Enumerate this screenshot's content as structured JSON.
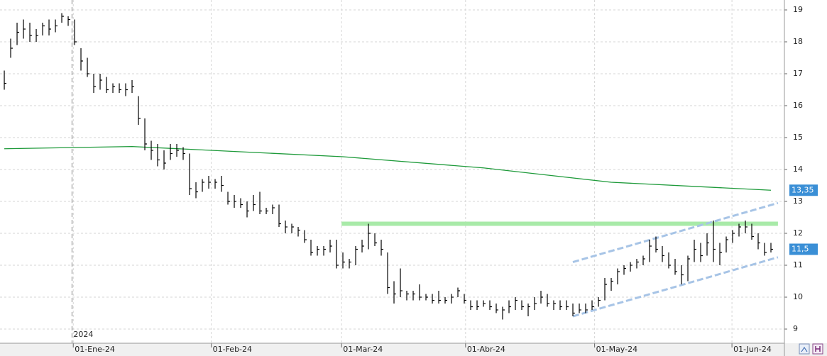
{
  "chart_data": {
    "type": "ohlc",
    "xlim": [
      -0.67,
      122.11
    ],
    "ylim": [
      8.556,
      19.311
    ],
    "yticks": [
      9,
      10,
      11,
      12,
      13,
      14,
      15,
      16,
      17,
      18,
      19
    ],
    "xticks": [
      {
        "value": 10.8,
        "label": "01-Ene-24"
      },
      {
        "value": 32.4,
        "label": "01-Feb-24"
      },
      {
        "value": 52.8,
        "label": "01-Mar-24"
      },
      {
        "value": 72.2,
        "label": "01-Abr-24"
      },
      {
        "value": 92.4,
        "label": "01-May-24"
      },
      {
        "value": 113.9,
        "label": "01-Jun-24"
      }
    ],
    "year_marker": {
      "value": 10.6,
      "label": "2024"
    },
    "grid": true,
    "bar_color": "#000000",
    "x": [
      0,
      1,
      2,
      3,
      4,
      5,
      6,
      7,
      8,
      9,
      10,
      11,
      12,
      13,
      14,
      15,
      16,
      17,
      18,
      19,
      20,
      21,
      22,
      23,
      24,
      25,
      26,
      27,
      28,
      29,
      30,
      31,
      32,
      33,
      34,
      35,
      36,
      37,
      38,
      39,
      40,
      41,
      42,
      43,
      44,
      45,
      46,
      47,
      48,
      49,
      50,
      51,
      52,
      53,
      54,
      55,
      56,
      57,
      58,
      59,
      60,
      61,
      62,
      63,
      64,
      65,
      66,
      67,
      68,
      69,
      70,
      71,
      72,
      73,
      74,
      75,
      76,
      77,
      78,
      79,
      80,
      81,
      82,
      83,
      84,
      85,
      86,
      87,
      88,
      89,
      90,
      91,
      92,
      93,
      94,
      95,
      96,
      97,
      98,
      99,
      100,
      101,
      102,
      103,
      104,
      105,
      106,
      107,
      108,
      109,
      110,
      111,
      112,
      113,
      114,
      115,
      116,
      117,
      118,
      119,
      120
    ],
    "high": [
      17.1,
      18.1,
      18.6,
      18.7,
      18.6,
      18.4,
      18.6,
      18.7,
      18.7,
      18.9,
      18.8,
      18.7,
      17.8,
      17.5,
      17.0,
      17.0,
      16.9,
      16.7,
      16.7,
      16.7,
      16.8,
      16.3,
      15.6,
      14.9,
      14.8,
      14.6,
      14.8,
      14.8,
      14.7,
      14.5,
      13.6,
      13.7,
      13.8,
      13.7,
      13.8,
      13.3,
      13.2,
      13.1,
      13.0,
      13.2,
      13.3,
      12.8,
      12.9,
      12.9,
      12.4,
      12.3,
      12.2,
      12.1,
      11.8,
      11.6,
      11.6,
      11.8,
      11.8,
      11.4,
      11.2,
      11.6,
      11.8,
      12.3,
      12.0,
      11.8,
      11.4,
      10.5,
      10.9,
      10.2,
      10.2,
      10.4,
      10.1,
      10.1,
      10.2,
      10.0,
      10.1,
      10.3,
      10.1,
      9.9,
      9.9,
      9.9,
      9.9,
      9.8,
      9.7,
      9.9,
      10.0,
      9.9,
      9.8,
      10.0,
      10.2,
      10.1,
      9.9,
      9.9,
      9.9,
      9.8,
      9.8,
      9.8,
      9.9,
      10.0,
      10.6,
      10.6,
      10.9,
      11.0,
      11.1,
      11.2,
      11.3,
      11.8,
      11.9,
      11.6,
      11.4,
      11.2,
      11.0,
      11.3,
      11.8,
      11.7,
      12.0,
      12.4,
      11.7,
      11.9,
      12.1,
      12.3,
      12.4,
      12.3,
      12.0,
      11.7,
      11.7
    ],
    "low": [
      16.5,
      17.5,
      17.9,
      18.1,
      18.0,
      18.0,
      18.2,
      18.2,
      18.3,
      18.6,
      18.5,
      17.9,
      17.1,
      16.9,
      16.4,
      16.5,
      16.4,
      16.4,
      16.4,
      16.3,
      16.4,
      15.4,
      14.6,
      14.3,
      14.1,
      14.0,
      14.3,
      14.4,
      14.3,
      13.2,
      13.1,
      13.3,
      13.4,
      13.4,
      13.3,
      12.9,
      12.8,
      12.8,
      12.5,
      12.7,
      12.6,
      12.6,
      12.6,
      12.2,
      12.0,
      12.0,
      11.9,
      11.7,
      11.3,
      11.3,
      11.3,
      11.4,
      10.9,
      10.9,
      10.9,
      11.0,
      11.4,
      11.5,
      11.6,
      11.3,
      10.1,
      9.8,
      10.0,
      9.9,
      9.9,
      9.9,
      9.9,
      9.8,
      9.8,
      9.8,
      9.8,
      10.0,
      9.8,
      9.6,
      9.6,
      9.7,
      9.6,
      9.5,
      9.3,
      9.5,
      9.6,
      9.6,
      9.4,
      9.6,
      9.8,
      9.7,
      9.6,
      9.6,
      9.6,
      9.4,
      9.5,
      9.5,
      9.6,
      9.7,
      9.9,
      10.2,
      10.4,
      10.7,
      10.8,
      10.9,
      11.0,
      11.1,
      11.4,
      11.1,
      10.9,
      10.7,
      10.4,
      10.5,
      11.1,
      11.1,
      11.3,
      11.1,
      11.0,
      11.4,
      11.7,
      11.9,
      12.0,
      11.8,
      11.5,
      11.3,
      11.4
    ],
    "close": [
      16.7,
      17.8,
      18.3,
      18.4,
      18.2,
      18.2,
      18.5,
      18.4,
      18.5,
      18.8,
      18.7,
      18.0,
      17.4,
      17.0,
      16.6,
      16.8,
      16.5,
      16.6,
      16.5,
      16.5,
      16.6,
      15.6,
      14.8,
      14.6,
      14.3,
      14.2,
      14.5,
      14.6,
      14.5,
      13.4,
      13.3,
      13.6,
      13.6,
      13.6,
      13.5,
      13.0,
      13.0,
      12.9,
      12.7,
      12.9,
      12.7,
      12.7,
      12.8,
      12.3,
      12.2,
      12.2,
      12.1,
      11.8,
      11.4,
      11.5,
      11.5,
      11.6,
      11.0,
      11.1,
      11.1,
      11.5,
      11.6,
      12.0,
      11.7,
      11.5,
      10.3,
      10.1,
      10.2,
      10.1,
      10.1,
      10.0,
      10.0,
      9.9,
      9.9,
      9.9,
      10.0,
      10.2,
      9.9,
      9.7,
      9.7,
      9.8,
      9.7,
      9.6,
      9.6,
      9.7,
      9.9,
      9.7,
      9.7,
      9.8,
      10.0,
      9.8,
      9.8,
      9.7,
      9.7,
      9.5,
      9.6,
      9.6,
      9.7,
      9.9,
      10.4,
      10.5,
      10.8,
      10.9,
      11.0,
      11.1,
      11.2,
      11.6,
      11.5,
      11.3,
      11.0,
      10.8,
      10.7,
      11.2,
      11.5,
      11.3,
      11.7,
      11.5,
      11.4,
      11.8,
      12.0,
      12.2,
      12.2,
      11.9,
      11.7,
      11.4,
      11.5
    ],
    "last_price": {
      "value": 11.5,
      "label": "11,5",
      "color": "#3a8fd6"
    },
    "moving_average": {
      "color": "#1e9a3a",
      "x": [
        0,
        20,
        53,
        75,
        95,
        120
      ],
      "values": [
        14.65,
        14.72,
        14.4,
        14.05,
        13.6,
        13.35
      ],
      "last": {
        "value": 13.35,
        "label": "13,35"
      }
    },
    "resistance": {
      "color": "#a8eaa8",
      "x": [
        52.8,
        121.1
      ],
      "values": [
        12.3,
        12.3
      ]
    },
    "channel": {
      "color": "#a7c4e6",
      "upper": {
        "x": [
          89,
          121.1
        ],
        "values": [
          11.1,
          12.95
        ]
      },
      "lower": {
        "x": [
          89,
          121.1
        ],
        "values": [
          9.4,
          11.25
        ]
      }
    }
  }
}
